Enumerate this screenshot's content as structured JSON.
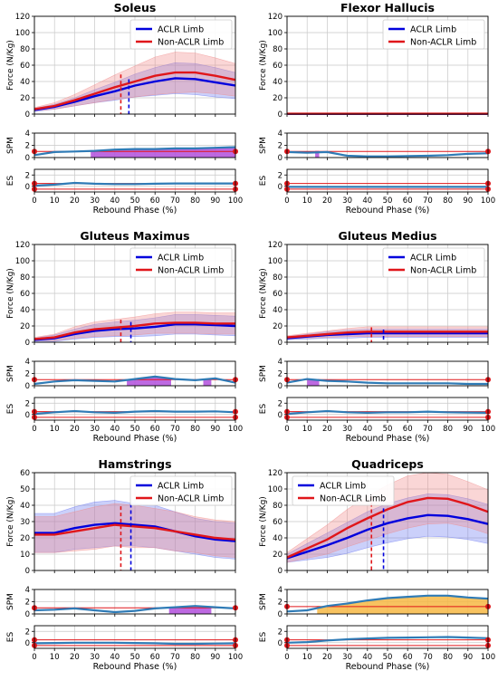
{
  "figure": {
    "xlabel": "Rebound Phase (%)",
    "ylabel_force": "Force (N/Kg)",
    "ylabel_spm": "SPM",
    "ylabel_es": "ES",
    "legend": [
      "ACLR Limb",
      "Non-ACLR Limb"
    ],
    "colors": {
      "aclr": "#0000dd",
      "aclr_band": "#6b78f2",
      "nonaclr": "#e0161a",
      "nonaclr_band": "#f08a8a",
      "spm_line": "#2f7bb6",
      "threshold": "#e0161a",
      "sig_purple": "#b14fdc",
      "sig_orange": "#f7b844",
      "grid": "#c8c8c8"
    }
  },
  "chart_data": [
    {
      "type": "line",
      "title": "Soleus",
      "xlabel": "Rebound Phase (%)",
      "ylabel": "Force (N/Kg)",
      "xlim": [
        0,
        100
      ],
      "ylim": [
        0,
        120
      ],
      "xticks": [
        0,
        10,
        20,
        30,
        40,
        50,
        60,
        70,
        80,
        90,
        100
      ],
      "yticks": [
        0,
        20,
        40,
        60,
        80,
        100,
        120
      ],
      "legend_position": "top-right",
      "x": [
        0,
        10,
        20,
        30,
        40,
        50,
        60,
        70,
        80,
        90,
        100
      ],
      "series": [
        {
          "name": "ACLR Limb",
          "values": [
            5,
            9,
            15,
            22,
            28,
            35,
            40,
            44,
            43,
            39,
            35
          ],
          "sd": [
            2,
            3,
            5,
            8,
            11,
            14,
            17,
            19,
            19,
            18,
            16
          ],
          "peak_x": 47
        },
        {
          "name": "Non-ACLR Limb",
          "values": [
            6,
            10,
            17,
            25,
            33,
            40,
            47,
            51,
            51,
            47,
            42
          ],
          "sd": [
            2,
            4,
            7,
            11,
            15,
            19,
            23,
            25,
            24,
            22,
            20
          ],
          "peak_x": 43
        }
      ],
      "spm": {
        "ylim": [
          0,
          4
        ],
        "yticks": [
          0,
          2,
          4
        ],
        "threshold": 1.0,
        "values": [
          0.4,
          0.9,
          1.0,
          1.1,
          1.3,
          1.4,
          1.4,
          1.5,
          1.5,
          1.6,
          1.7
        ],
        "significant_ranges": [
          [
            28,
            100
          ]
        ],
        "significance_color": "purple"
      },
      "es": {
        "ylim": [
          -1,
          3
        ],
        "yticks": [
          0,
          2
        ],
        "threshold": 0.5,
        "values": [
          0.1,
          0.3,
          0.6,
          0.45,
          0.4,
          0.4,
          0.45,
          0.5,
          0.5,
          0.5,
          0.5
        ]
      }
    },
    {
      "type": "line",
      "title": "Flexor Hallucis",
      "xlabel": "Rebound Phase (%)",
      "ylabel": "Force (N/Kg)",
      "xlim": [
        0,
        100
      ],
      "ylim": [
        0,
        120
      ],
      "xticks": [
        0,
        10,
        20,
        30,
        40,
        50,
        60,
        70,
        80,
        90,
        100
      ],
      "yticks": [
        0,
        20,
        40,
        60,
        80,
        100,
        120
      ],
      "legend_position": "top-right",
      "x": [
        0,
        10,
        20,
        30,
        40,
        50,
        60,
        70,
        80,
        90,
        100
      ],
      "series": [
        {
          "name": "ACLR Limb",
          "values": [
            0.3,
            0.3,
            0.3,
            0.3,
            0.3,
            0.3,
            0.3,
            0.3,
            0.3,
            0.3,
            0.3
          ],
          "sd": [
            0.2,
            0.2,
            0.2,
            0.2,
            0.2,
            0.2,
            0.2,
            0.2,
            0.2,
            0.2,
            0.2
          ]
        },
        {
          "name": "Non-ACLR Limb",
          "values": [
            0.4,
            0.4,
            0.4,
            0.4,
            0.4,
            0.4,
            0.4,
            0.4,
            0.4,
            0.4,
            0.4
          ],
          "sd": [
            0.2,
            0.2,
            0.2,
            0.2,
            0.2,
            0.2,
            0.2,
            0.2,
            0.2,
            0.2,
            0.2
          ]
        }
      ],
      "spm": {
        "ylim": [
          0,
          4
        ],
        "yticks": [
          0,
          2,
          4
        ],
        "threshold": 1.0,
        "values": [
          0.9,
          0.8,
          0.9,
          0.3,
          0.2,
          0.2,
          0.25,
          0.3,
          0.4,
          0.6,
          0.7
        ],
        "significant_ranges": [
          [
            14,
            16
          ]
        ],
        "significance_color": "purple"
      },
      "es": {
        "ylim": [
          -1,
          3
        ],
        "yticks": [
          0,
          2
        ],
        "threshold": 0.5,
        "values": [
          -0.1,
          -0.1,
          -0.1,
          -0.1,
          -0.1,
          -0.1,
          -0.1,
          -0.1,
          -0.1,
          -0.1,
          -0.1
        ]
      }
    },
    {
      "type": "line",
      "title": "Gluteus Maximus",
      "xlabel": "Rebound Phase (%)",
      "ylabel": "Force (N/Kg)",
      "xlim": [
        0,
        100
      ],
      "ylim": [
        0,
        120
      ],
      "xticks": [
        0,
        10,
        20,
        30,
        40,
        50,
        60,
        70,
        80,
        90,
        100
      ],
      "yticks": [
        0,
        20,
        40,
        60,
        80,
        100,
        120
      ],
      "legend_position": "top-right",
      "x": [
        0,
        10,
        20,
        30,
        40,
        50,
        60,
        70,
        80,
        90,
        100
      ],
      "series": [
        {
          "name": "ACLR Limb",
          "values": [
            3,
            5,
            10,
            14,
            16,
            17,
            19,
            22,
            22,
            21,
            20
          ],
          "sd": [
            2,
            4,
            6,
            8,
            9,
            10,
            11,
            12,
            12,
            12,
            12
          ],
          "peak_x": 48
        },
        {
          "name": "Non-ACLR Limb",
          "values": [
            4,
            6,
            12,
            16,
            18,
            20,
            23,
            24,
            24,
            23,
            23
          ],
          "sd": [
            2,
            4,
            7,
            9,
            10,
            11,
            12,
            13,
            13,
            13,
            13
          ],
          "peak_x": 43
        }
      ],
      "spm": {
        "ylim": [
          0,
          4
        ],
        "yticks": [
          0,
          2,
          4
        ],
        "threshold": 1.0,
        "values": [
          0.3,
          0.7,
          0.9,
          0.8,
          0.7,
          1.1,
          1.5,
          1.1,
          0.9,
          1.2,
          0.5
        ],
        "significant_ranges": [
          [
            46,
            68
          ],
          [
            84,
            88
          ]
        ],
        "significance_color": "purple"
      },
      "es": {
        "ylim": [
          -1,
          3
        ],
        "yticks": [
          0,
          2
        ],
        "threshold": 0.5,
        "values": [
          0.1,
          0.4,
          0.6,
          0.4,
          0.3,
          0.5,
          0.6,
          0.5,
          0.5,
          0.55,
          0.4
        ]
      }
    },
    {
      "type": "line",
      "title": "Gluteus Medius",
      "xlabel": "Rebound Phase (%)",
      "ylabel": "Force (N/Kg)",
      "xlim": [
        0,
        100
      ],
      "ylim": [
        0,
        120
      ],
      "xticks": [
        0,
        10,
        20,
        30,
        40,
        50,
        60,
        70,
        80,
        90,
        100
      ],
      "yticks": [
        0,
        20,
        40,
        60,
        80,
        100,
        120
      ],
      "legend_position": "top-right",
      "x": [
        0,
        10,
        20,
        30,
        40,
        50,
        60,
        70,
        80,
        90,
        100
      ],
      "series": [
        {
          "name": "ACLR Limb",
          "values": [
            5,
            7,
            9,
            10,
            11,
            11,
            11,
            11,
            11,
            11,
            11
          ],
          "sd": [
            2,
            3,
            4,
            5,
            5,
            5,
            5,
            5,
            5,
            5,
            5
          ],
          "peak_x": 48
        },
        {
          "name": "Non-ACLR Limb",
          "values": [
            6,
            8,
            10,
            12,
            13,
            13,
            13,
            13,
            13,
            13,
            13
          ],
          "sd": [
            2,
            3,
            4,
            5,
            6,
            6,
            6,
            6,
            6,
            6,
            6
          ],
          "peak_x": 42
        }
      ],
      "spm": {
        "ylim": [
          0,
          4
        ],
        "yticks": [
          0,
          2,
          4
        ],
        "threshold": 1.0,
        "values": [
          0.5,
          1.1,
          0.8,
          0.7,
          0.5,
          0.4,
          0.4,
          0.4,
          0.4,
          0.3,
          0.3
        ],
        "significant_ranges": [
          [
            10,
            16
          ]
        ],
        "significance_color": "purple"
      },
      "es": {
        "ylim": [
          -1,
          3
        ],
        "yticks": [
          0,
          2
        ],
        "threshold": 0.5,
        "values": [
          0.1,
          0.4,
          0.6,
          0.4,
          0.3,
          0.4,
          0.4,
          0.5,
          0.4,
          0.35,
          0.3
        ]
      }
    },
    {
      "type": "line",
      "title": "Hamstrings",
      "xlabel": "Rebound Phase (%)",
      "ylabel": "Force (N/Kg)",
      "xlim": [
        0,
        100
      ],
      "ylim": [
        0,
        60
      ],
      "xticks": [
        0,
        10,
        20,
        30,
        40,
        50,
        60,
        70,
        80,
        90,
        100
      ],
      "yticks": [
        0,
        10,
        20,
        30,
        40,
        50,
        60
      ],
      "legend_position": "top-right",
      "x": [
        0,
        10,
        20,
        30,
        40,
        50,
        60,
        70,
        80,
        90,
        100
      ],
      "series": [
        {
          "name": "ACLR Limb",
          "values": [
            23,
            23,
            26,
            28,
            29,
            28,
            27,
            24,
            21,
            19,
            18
          ],
          "sd": [
            12,
            12,
            13,
            14,
            14,
            13,
            13,
            12,
            11,
            11,
            11
          ],
          "peak_x": 48
        },
        {
          "name": "Non-ACLR Limb",
          "values": [
            22,
            22,
            24,
            26,
            28,
            27,
            26,
            24,
            22,
            20,
            19
          ],
          "sd": [
            11,
            11,
            12,
            13,
            13,
            13,
            12,
            12,
            11,
            11,
            11
          ],
          "peak_x": 43
        }
      ],
      "spm": {
        "ylim": [
          0,
          4
        ],
        "yticks": [
          0,
          2,
          4
        ],
        "threshold": 1.0,
        "values": [
          0.6,
          0.7,
          0.9,
          0.6,
          0.3,
          0.5,
          0.9,
          1.1,
          1.3,
          1.1,
          0.9
        ],
        "significant_ranges": [
          [
            67,
            88
          ]
        ],
        "significance_color": "purple"
      },
      "es": {
        "ylim": [
          -1,
          3
        ],
        "yticks": [
          0,
          2
        ],
        "threshold": 0.5,
        "values": [
          -0.1,
          -0.05,
          0.0,
          0.0,
          0.0,
          -0.05,
          -0.1,
          -0.2,
          -0.2,
          -0.15,
          -0.1
        ]
      }
    },
    {
      "type": "line",
      "title": "Quadriceps",
      "xlabel": "Rebound Phase (%)",
      "ylabel": "Force (N/Kg)",
      "xlim": [
        0,
        100
      ],
      "ylim": [
        0,
        120
      ],
      "xticks": [
        0,
        10,
        20,
        30,
        40,
        50,
        60,
        70,
        80,
        90,
        100
      ],
      "yticks": [
        0,
        20,
        40,
        60,
        80,
        100,
        120
      ],
      "legend_position": "top-left",
      "x": [
        0,
        10,
        20,
        30,
        40,
        50,
        60,
        70,
        80,
        90,
        100
      ],
      "series": [
        {
          "name": "ACLR Limb",
          "values": [
            15,
            23,
            31,
            40,
            50,
            58,
            64,
            68,
            67,
            63,
            57
          ],
          "sd": [
            5,
            10,
            15,
            19,
            22,
            24,
            25,
            26,
            26,
            25,
            24
          ],
          "peak_x": 48
        },
        {
          "name": "Non-ACLR Limb",
          "values": [
            16,
            27,
            38,
            52,
            64,
            75,
            84,
            89,
            88,
            81,
            72
          ],
          "sd": [
            6,
            12,
            18,
            23,
            27,
            30,
            32,
            32,
            30,
            28,
            27
          ],
          "peak_x": 42
        }
      ],
      "spm": {
        "ylim": [
          0,
          4
        ],
        "yticks": [
          0,
          2,
          4
        ],
        "threshold": 1.2,
        "values": [
          0.4,
          0.6,
          1.3,
          1.7,
          2.2,
          2.6,
          2.8,
          3.0,
          3.0,
          2.7,
          2.5
        ],
        "significant_ranges": [
          [
            15,
            100
          ]
        ],
        "significance_color": "orange"
      },
      "es": {
        "ylim": [
          -1,
          3
        ],
        "yticks": [
          0,
          2
        ],
        "threshold": 0.5,
        "values": [
          0.0,
          0.1,
          0.4,
          0.6,
          0.75,
          0.85,
          0.9,
          0.95,
          1.0,
          0.9,
          0.8
        ]
      }
    }
  ]
}
